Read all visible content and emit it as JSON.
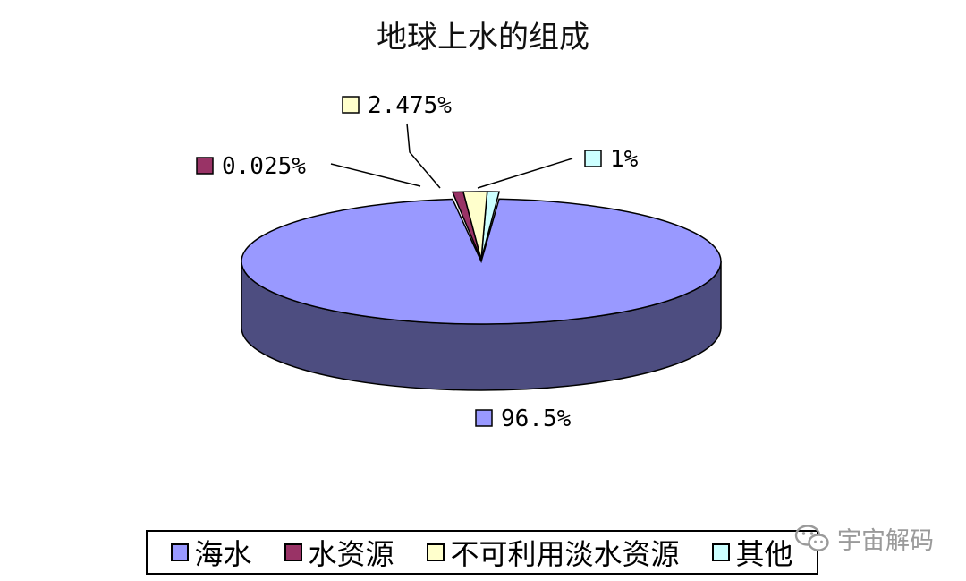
{
  "chart_data": {
    "type": "pie",
    "title": "地球上水的组成",
    "categories": [
      "海水",
      "水资源",
      "不可利用淡水资源",
      "其他"
    ],
    "values": [
      96.5,
      0.025,
      2.475,
      1
    ],
    "labels": [
      "96.5%",
      "0.025%",
      "2.475%",
      "1%"
    ],
    "colors": [
      "#9999ff",
      "#993366",
      "#ffffcc",
      "#ccffff"
    ],
    "side_colors": [
      "#4d4d80",
      "#4d1a33",
      "#808066",
      "#668080"
    ],
    "three_d": true,
    "legend_position": "bottom"
  },
  "watermark": {
    "text": "宇宙解码",
    "icon": "wechat-icon"
  }
}
